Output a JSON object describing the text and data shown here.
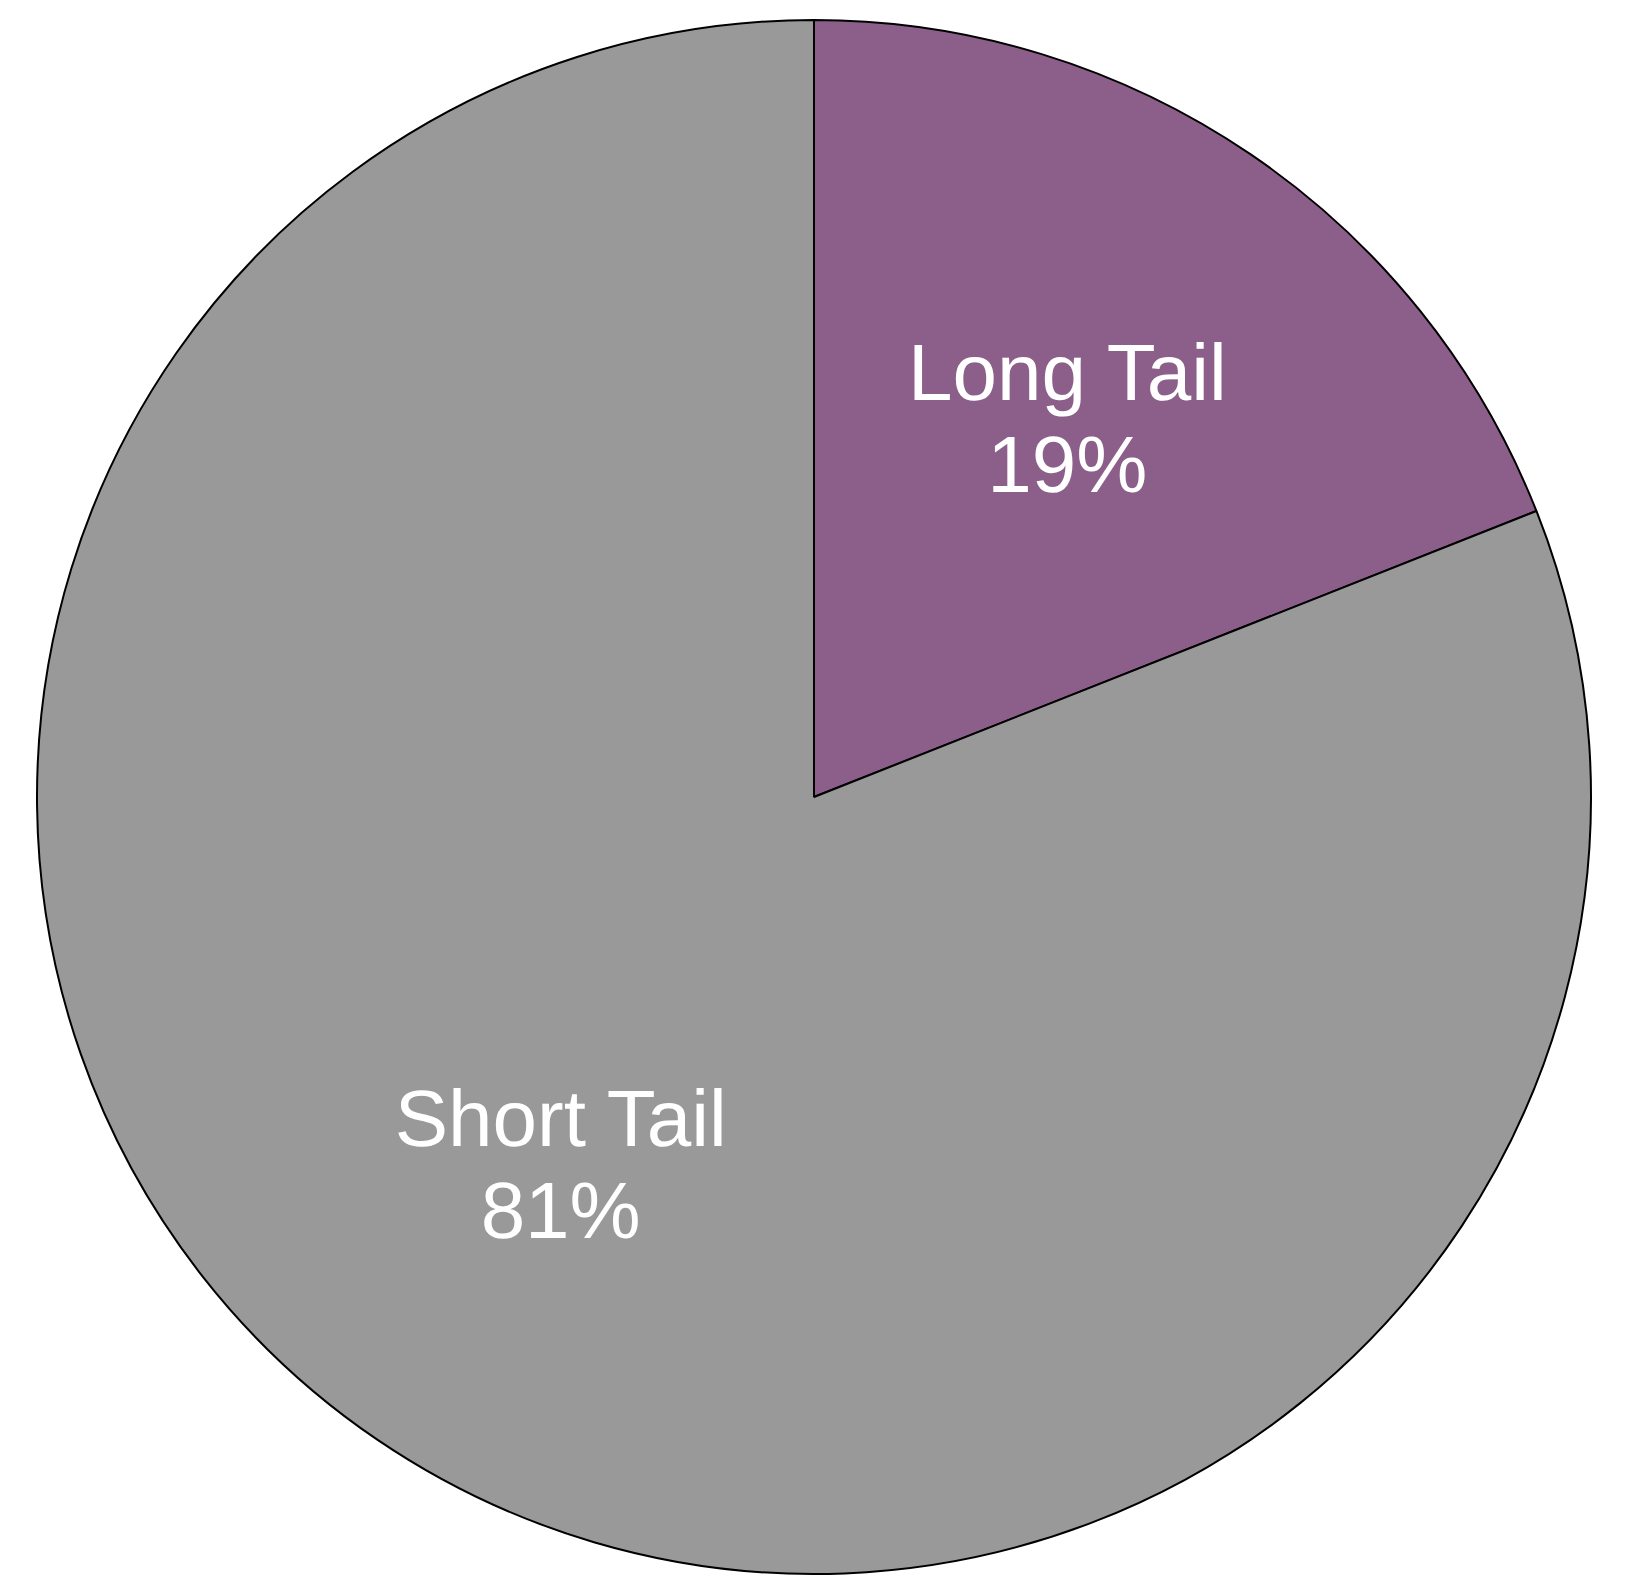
{
  "chart_data": {
    "type": "pie",
    "categories": [
      "Long Tail",
      "Short Tail"
    ],
    "values": [
      19,
      81
    ],
    "colors": [
      "#8b5f8a",
      "#999999"
    ],
    "value_labels": [
      "19%",
      "81%"
    ]
  }
}
